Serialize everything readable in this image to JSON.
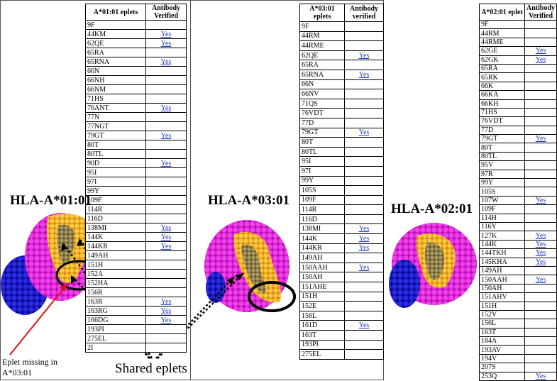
{
  "panels": [
    {
      "title": "HLA-A*01:01",
      "header_eplet": "A*01:01 eplets",
      "header_verified": "Antibody Verified",
      "rows": [
        [
          "9F",
          ""
        ],
        [
          "44KM",
          "Yes"
        ],
        [
          "62QE",
          "Yes"
        ],
        [
          "65RA",
          ""
        ],
        [
          "65RNA",
          "Yes"
        ],
        [
          "66N",
          ""
        ],
        [
          "66NH",
          ""
        ],
        [
          "66NM",
          ""
        ],
        [
          "71HS",
          ""
        ],
        [
          "76ANT",
          "Yes"
        ],
        [
          "77N",
          ""
        ],
        [
          "77NGT",
          ""
        ],
        [
          "79GT",
          "Yes"
        ],
        [
          "80T",
          ""
        ],
        [
          "80TL",
          ""
        ],
        [
          "90D",
          "Yes"
        ],
        [
          "95I",
          ""
        ],
        [
          "97I",
          ""
        ],
        [
          "99Y",
          ""
        ],
        [
          "109F",
          ""
        ],
        [
          "114R",
          ""
        ],
        [
          "116D",
          ""
        ],
        [
          "138MI",
          "Yes"
        ],
        [
          "144K",
          "Yes"
        ],
        [
          "144KR",
          "Yes"
        ],
        [
          "149AH",
          ""
        ],
        [
          "151H",
          ""
        ],
        [
          "152A",
          ""
        ],
        [
          "152HA",
          ""
        ],
        [
          "156R",
          ""
        ],
        [
          "163R",
          "Yes"
        ],
        [
          "163RG",
          "Yes"
        ],
        [
          "166DG",
          "Yes"
        ],
        [
          "193PI",
          ""
        ],
        [
          "275EL",
          ""
        ],
        [
          "2I",
          ""
        ]
      ]
    },
    {
      "title": "HLA-A*03:01",
      "header_eplet": "A*03:01 eplets",
      "header_verified": "Antibody verified",
      "rows": [
        [
          "9F",
          ""
        ],
        [
          "44RM",
          ""
        ],
        [
          "44RME",
          ""
        ],
        [
          "62QE",
          "Yes"
        ],
        [
          "65RA",
          ""
        ],
        [
          "65RNA",
          "Yes"
        ],
        [
          "66N",
          ""
        ],
        [
          "66NV",
          ""
        ],
        [
          "71QS",
          ""
        ],
        [
          "76VDT",
          ""
        ],
        [
          "77D",
          ""
        ],
        [
          "79GT",
          "Yes"
        ],
        [
          "80T",
          ""
        ],
        [
          "80TL",
          ""
        ],
        [
          "95I",
          ""
        ],
        [
          "97I",
          ""
        ],
        [
          "99Y",
          ""
        ],
        [
          "105S",
          ""
        ],
        [
          "109F",
          ""
        ],
        [
          "114R",
          ""
        ],
        [
          "116D",
          ""
        ],
        [
          "138MI",
          "Yes"
        ],
        [
          "144K",
          "Yes"
        ],
        [
          "144KR",
          "Yes"
        ],
        [
          "149AH",
          ""
        ],
        [
          "150AAH",
          "Yes"
        ],
        [
          "150AH",
          ""
        ],
        [
          "151AHE",
          ""
        ],
        [
          "151H",
          ""
        ],
        [
          "152E",
          ""
        ],
        [
          "156L",
          ""
        ],
        [
          "161D",
          "Yes"
        ],
        [
          "163T",
          ""
        ],
        [
          "193PI",
          ""
        ],
        [
          "275EL",
          ""
        ]
      ]
    },
    {
      "title": "HLA-A*02:01",
      "header_eplet": "A*02:01 eplet",
      "header_verified": "Antibody Verified",
      "rows": [
        [
          "9F",
          ""
        ],
        [
          "44RM",
          ""
        ],
        [
          "44RME",
          ""
        ],
        [
          "62GE",
          "Yes"
        ],
        [
          "62GK",
          "Yes"
        ],
        [
          "65RA",
          ""
        ],
        [
          "65RK",
          ""
        ],
        [
          "66K",
          ""
        ],
        [
          "66KA",
          ""
        ],
        [
          "66KH",
          ""
        ],
        [
          "71HS",
          ""
        ],
        [
          "76VDT",
          ""
        ],
        [
          "77D",
          ""
        ],
        [
          "79GT",
          "Yes"
        ],
        [
          "80T",
          ""
        ],
        [
          "80TL",
          ""
        ],
        [
          "95V",
          ""
        ],
        [
          "97R",
          ""
        ],
        [
          "99Y",
          ""
        ],
        [
          "105S",
          ""
        ],
        [
          "107W",
          "Yes"
        ],
        [
          "109F",
          ""
        ],
        [
          "114H",
          ""
        ],
        [
          "116Y",
          ""
        ],
        [
          "127K",
          "Yes"
        ],
        [
          "144K",
          "Yes"
        ],
        [
          "144TKH",
          "Yes"
        ],
        [
          "145KHA",
          "Yes"
        ],
        [
          "149AH",
          ""
        ],
        [
          "150AAH",
          "Yes"
        ],
        [
          "150AH",
          ""
        ],
        [
          "151AHV",
          ""
        ],
        [
          "151H",
          ""
        ],
        [
          "152V",
          ""
        ],
        [
          "156L",
          ""
        ],
        [
          "163T",
          ""
        ],
        [
          "184A",
          ""
        ],
        [
          "193AV",
          ""
        ],
        [
          "194V",
          ""
        ],
        [
          "207S",
          ""
        ],
        [
          "253Q",
          "Yes"
        ]
      ]
    }
  ],
  "annotations": {
    "missing": "Eplet missing in A*03:01",
    "shared": "Shared eplets"
  },
  "colors": {
    "magenta": "#e020d8",
    "blue": "#1a1ad0",
    "orange": "#f0b020",
    "olive": "#9a8a50",
    "link": "#1f3ccc",
    "arrow_red": "#e01010"
  }
}
